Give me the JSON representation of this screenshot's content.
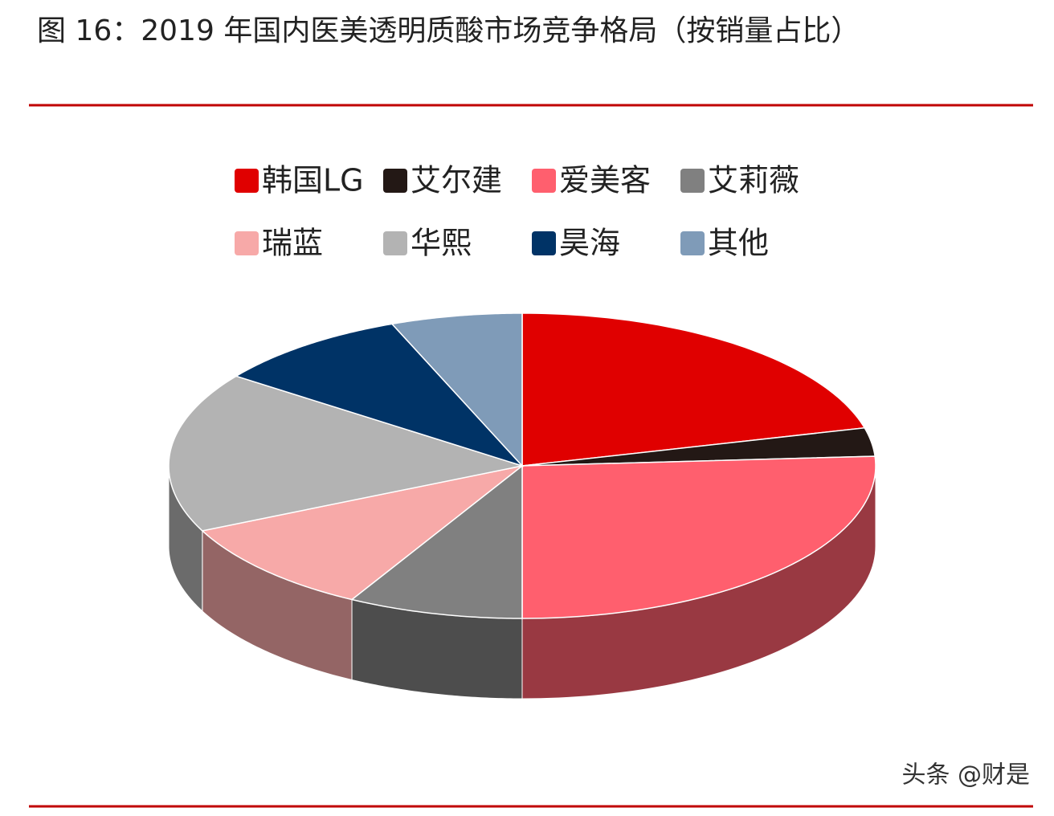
{
  "chart_data": {
    "type": "pie3d",
    "title": "图 16：2019 年国内医美透明质酸市场竞争格局（按销量占比）",
    "watermark": "头条 @财是",
    "categories": [
      "韩国LG",
      "艾尔建",
      "爱美客",
      "艾莉薇",
      "瑞蓝",
      "华熙",
      "昊海",
      "其他"
    ],
    "values": [
      21,
      3,
      26,
      8,
      10,
      17,
      9,
      6
    ],
    "colors": [
      "#e00000",
      "#231815",
      "#ff5f6e",
      "#808080",
      "#f7a9a8",
      "#b3b3b3",
      "#003366",
      "#7f9bb8"
    ]
  }
}
